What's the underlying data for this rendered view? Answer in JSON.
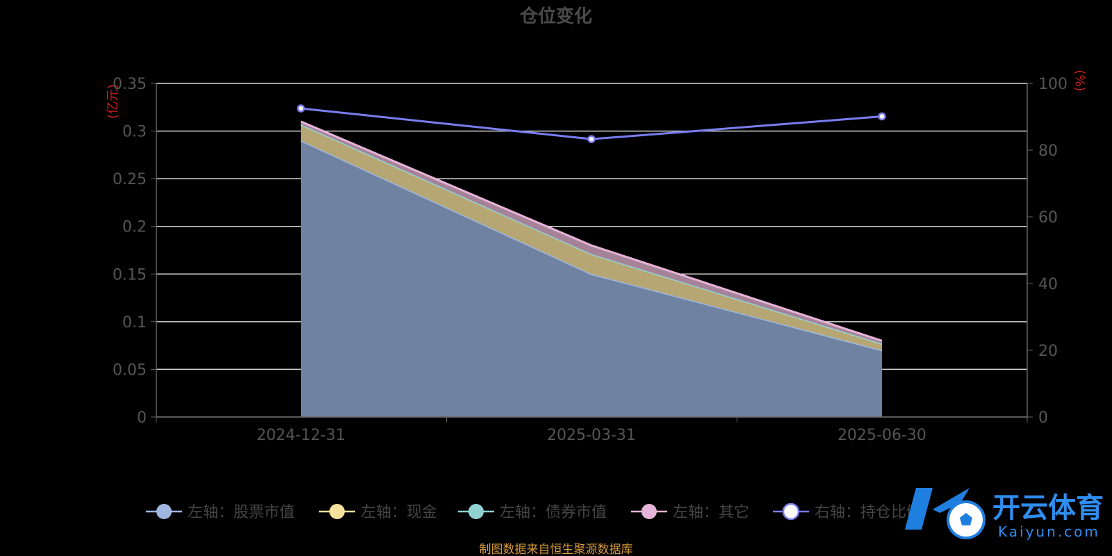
{
  "chart_data": {
    "type": "area",
    "title": "仓位变化",
    "left_unit": "(亿元)",
    "right_unit": "(%)",
    "categories": [
      "2024-12-31",
      "2025-03-31",
      "2025-06-30"
    ],
    "ylim_left": [
      0,
      0.35
    ],
    "yticks_left": [
      "0",
      "0.05",
      "0.1",
      "0.15",
      "0.2",
      "0.25",
      "0.3",
      "0.35"
    ],
    "ylim_right": [
      0,
      100
    ],
    "yticks_right": [
      "0",
      "20",
      "40",
      "60",
      "80",
      "100"
    ],
    "grid": true,
    "legend_position": "bottom",
    "stacked": true,
    "series": [
      {
        "name": "左轴：股票市值",
        "axis": "left",
        "kind": "area",
        "color": "#9fb7e0",
        "fill": "#6f82a1",
        "values": [
          0.29,
          0.15,
          0.07
        ]
      },
      {
        "name": "左轴：现金",
        "axis": "left",
        "kind": "area",
        "color": "#f7e29c",
        "fill": "#b5a673",
        "values": [
          0.017,
          0.021,
          0.007
        ]
      },
      {
        "name": "左轴：债券市值",
        "axis": "left",
        "kind": "area",
        "color": "#8fd2d2",
        "fill": "#6fa3a3",
        "values": [
          0,
          0,
          0
        ]
      },
      {
        "name": "左轴：其它",
        "axis": "left",
        "kind": "area",
        "color": "#e6b4d8",
        "fill": "#a68298",
        "values": [
          0.003,
          0.009,
          0.003
        ]
      },
      {
        "name": "右轴：持仓比例",
        "axis": "right",
        "kind": "line",
        "color": "#7a7df0",
        "values": [
          92.5,
          83.3,
          90.1
        ]
      }
    ]
  },
  "footer": "制图数据来自恒生聚源数据库",
  "watermark": {
    "cn": "开云体育",
    "en": "Kaiyun.com"
  }
}
